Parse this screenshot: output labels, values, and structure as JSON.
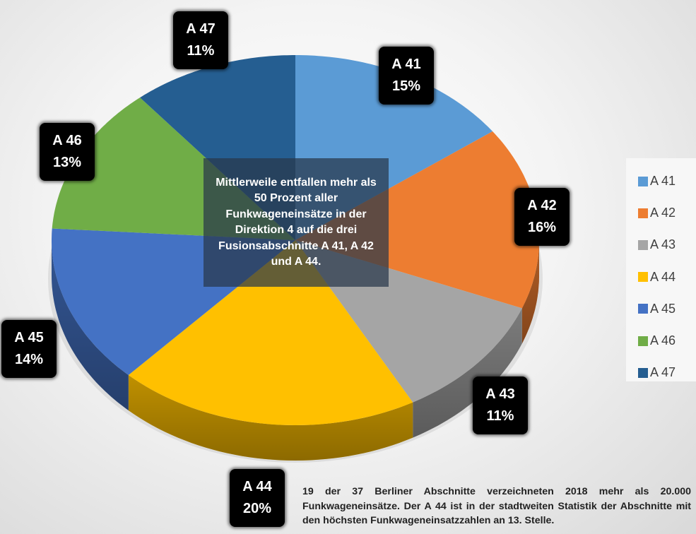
{
  "chart_data": {
    "type": "pie",
    "categories": [
      "A 41",
      "A 42",
      "A 43",
      "A 44",
      "A 45",
      "A 46",
      "A 47"
    ],
    "values": [
      15,
      16,
      11,
      20,
      14,
      13,
      11
    ],
    "value_labels": [
      "15%",
      "16%",
      "11%",
      "20%",
      "14%",
      "13%",
      "11%"
    ],
    "colors": [
      "#5b9bd5",
      "#ed7d31",
      "#a5a5a5",
      "#ffc000",
      "#4472c4",
      "#70ad47",
      "#255e91"
    ],
    "legend_position": "right",
    "style": "3d-exploded-none"
  },
  "annotation": {
    "center_text": "Mittlerweile entfallen mehr als 50 Prozent aller Funkwageneinsätze in der Direktion 4 auf die drei Fusionsabschnitte A 41, A 42 und A 44."
  },
  "footnote": "19 der 37 Berliner Abschnitte verzeichneten 2018 mehr als 20.000 Funkwageneinsätze. Der A 44 ist in der stadtweiten Statistik der Abschnitte mit den höchsten Funkwageneinsatzzahlen an 13. Stelle."
}
